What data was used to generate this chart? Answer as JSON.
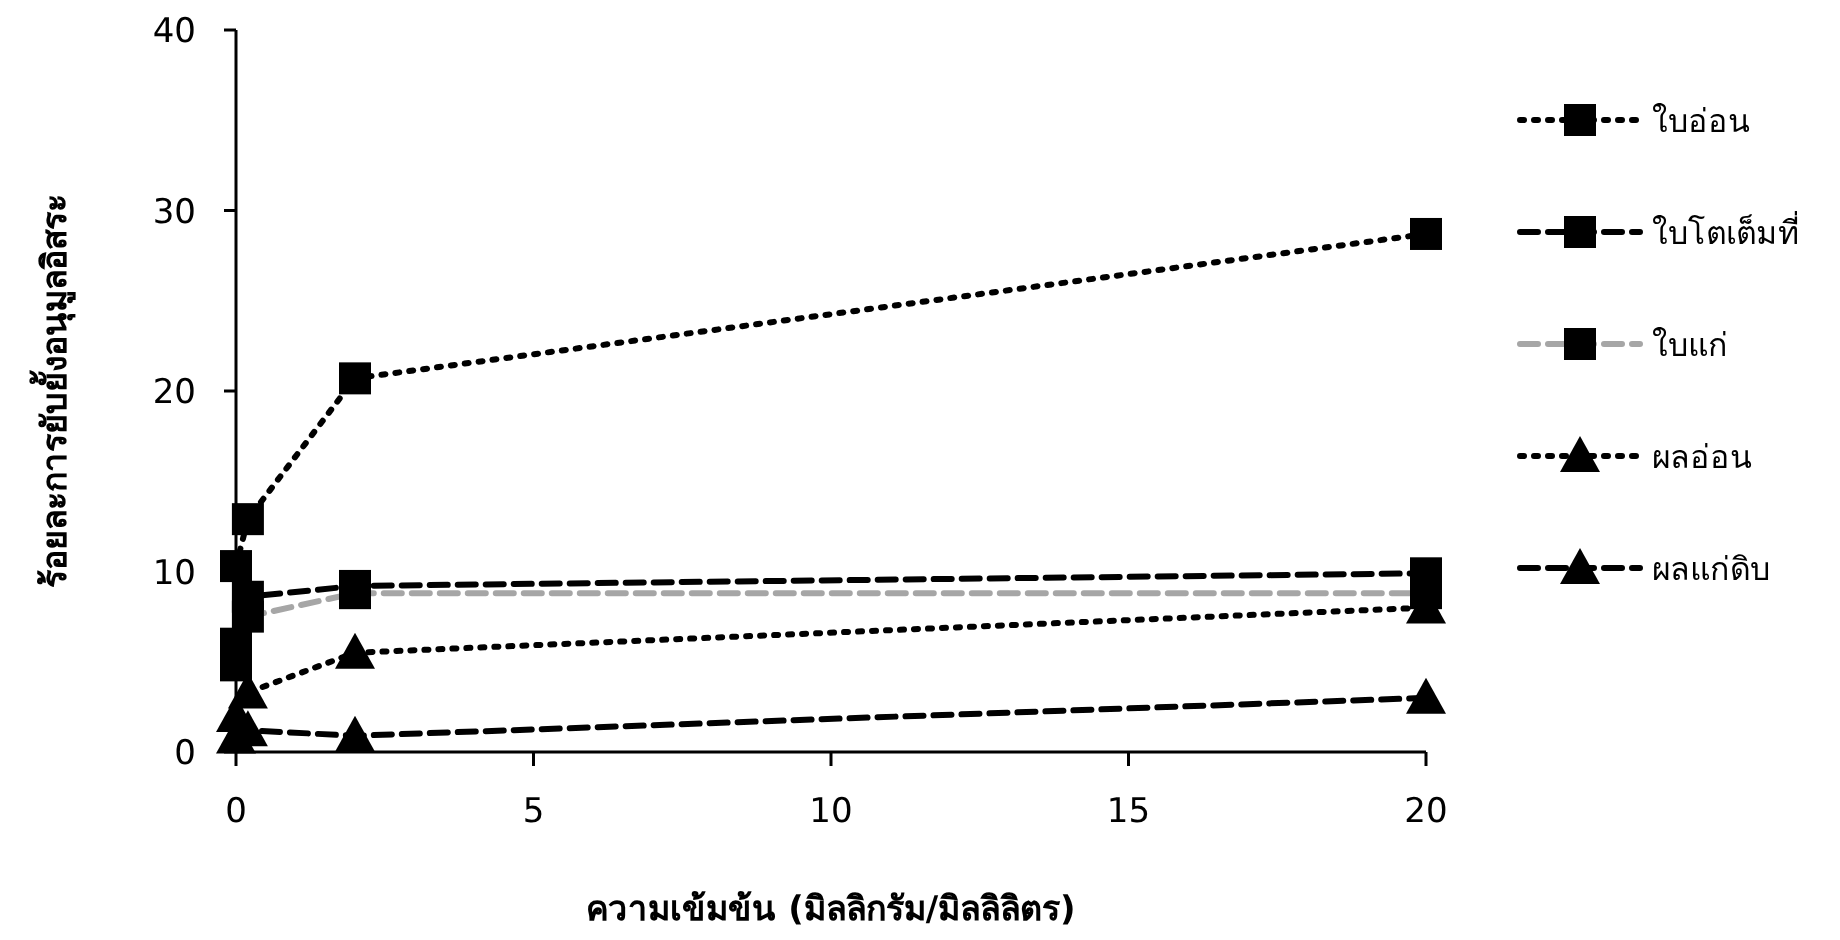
{
  "chart_data": {
    "type": "line",
    "xlabel": "ความเข้มข้น (มิลลิกรัม/มิลลิลิตร)",
    "ylabel": "ร้อยละการยับยั้งอนุมูลอิสระ",
    "xlim": [
      0,
      20
    ],
    "xticks": [
      0,
      5,
      10,
      15,
      20
    ],
    "ylim": [
      0,
      40
    ],
    "yticks": [
      0,
      10,
      20,
      30,
      40
    ],
    "grid": false,
    "legend": "right",
    "series": [
      {
        "name": "ใบอ่อน",
        "color": "#000000",
        "marker": "square",
        "line_style": "dotted",
        "x": [
          0,
          0.2,
          2,
          20
        ],
        "values": [
          10.3,
          12.9,
          20.7,
          28.7
        ]
      },
      {
        "name": "ใบโตเต็มที่",
        "color": "#000000",
        "marker": "square",
        "line_style": "dashed",
        "x": [
          0,
          0.2,
          2,
          20
        ],
        "values": [
          4.8,
          8.6,
          9.2,
          9.9
        ]
      },
      {
        "name": "ใบแก่",
        "color": "#a6a6a6",
        "marker": "square",
        "line_style": "dashed",
        "x": [
          0,
          0.2,
          2,
          20
        ],
        "values": [
          6.0,
          7.5,
          8.8,
          8.8
        ]
      },
      {
        "name": "ผลอ่อน",
        "color": "#000000",
        "marker": "triangle",
        "line_style": "dotted",
        "x": [
          0,
          0.2,
          2,
          20
        ],
        "values": [
          2.0,
          3.3,
          5.5,
          8.0
        ]
      },
      {
        "name": "ผลแก่ดิบ",
        "color": "#000000",
        "marker": "triangle",
        "line_style": "dashed",
        "x": [
          0,
          0.2,
          2,
          20
        ],
        "values": [
          0.8,
          1.2,
          0.9,
          3.0
        ]
      }
    ]
  }
}
